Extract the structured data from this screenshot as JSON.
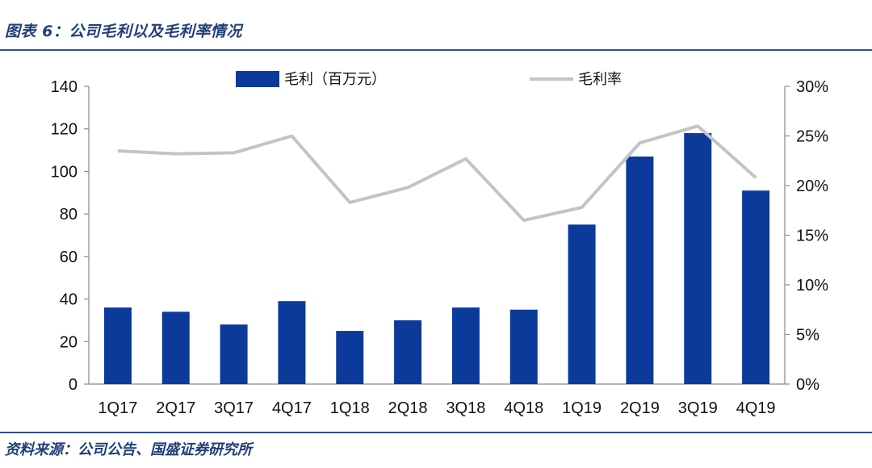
{
  "header": {
    "title": "图表 6：公司毛利以及毛利率情况"
  },
  "footer": {
    "source": "资料来源：公司公告、国盛证券研究所"
  },
  "colors": {
    "bar": "#0b3a9a",
    "line": "#c4c4c4",
    "rule": "#2d4f93",
    "title": "#1f3f7a"
  },
  "chart_data": {
    "type": "bar",
    "categories": [
      "1Q17",
      "2Q17",
      "3Q17",
      "4Q17",
      "1Q18",
      "2Q18",
      "3Q18",
      "4Q18",
      "1Q19",
      "2Q19",
      "3Q19",
      "4Q19"
    ],
    "series": [
      {
        "name": "毛利（百万元）",
        "type": "bar",
        "axis": "left",
        "values": [
          36,
          34,
          28,
          39,
          25,
          30,
          36,
          35,
          75,
          107,
          118,
          91
        ]
      },
      {
        "name": "毛利率",
        "type": "line",
        "axis": "right",
        "values": [
          0.235,
          0.232,
          0.233,
          0.25,
          0.183,
          0.198,
          0.227,
          0.165,
          0.178,
          0.243,
          0.26,
          0.208
        ]
      }
    ],
    "y_left": {
      "ylim": [
        0,
        140
      ],
      "ticks": [
        0,
        20,
        40,
        60,
        80,
        100,
        120,
        140
      ],
      "tick_labels": [
        "0",
        "20",
        "40",
        "60",
        "80",
        "100",
        "120",
        "140"
      ]
    },
    "y_right": {
      "ylim": [
        0,
        0.3
      ],
      "ticks": [
        0,
        0.05,
        0.1,
        0.15,
        0.2,
        0.25,
        0.3
      ],
      "tick_labels": [
        "0%",
        "5%",
        "10%",
        "15%",
        "20%",
        "25%",
        "30%"
      ]
    },
    "legend": {
      "placement": "top-center",
      "bar_label": "毛利（百万元）",
      "line_label": "毛利率"
    },
    "grid": false
  }
}
